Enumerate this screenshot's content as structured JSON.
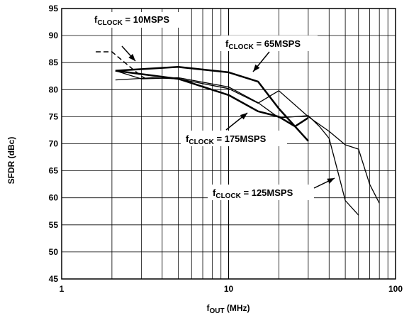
{
  "chart_data": {
    "type": "line",
    "title": "",
    "xlabel": {
      "main": "f",
      "sub": "OUT",
      "rest": " (MHz)"
    },
    "ylabel": "SFDR (dBc)",
    "x_scale": "log",
    "xlim": [
      1,
      100
    ],
    "ylim": [
      45,
      95
    ],
    "grid": true,
    "legend": "none",
    "x_ticks": [
      1,
      10,
      100
    ],
    "x_tick_labels": [
      "1",
      "10",
      "100"
    ],
    "y_ticks": [
      45,
      50,
      55,
      60,
      65,
      70,
      75,
      80,
      85,
      90,
      95
    ],
    "y_tick_labels": [
      "45",
      "50",
      "55",
      "60",
      "65",
      "70",
      "75",
      "80",
      "85",
      "90",
      "95"
    ],
    "series": [
      {
        "label_main": "f",
        "label_sub": "CLOCK",
        "label_rest": " = 10MSPS",
        "style": "dashed",
        "width": 1.5,
        "x": [
          1.6,
          2.0,
          2.5,
          3.0,
          3.3
        ],
        "y": [
          87,
          87,
          84.5,
          82.5,
          81.8
        ]
      },
      {
        "label_main": "f",
        "label_sub": "CLOCK",
        "label_rest": " = 65MSPS",
        "style": "solid",
        "width": 2.5,
        "x": [
          2.1,
          5.0,
          10,
          15,
          20,
          30
        ],
        "y": [
          83.5,
          84.2,
          83.2,
          81.5,
          76.5,
          70.5
        ]
      },
      {
        "label_main": "f",
        "label_sub": "CLOCK",
        "label_rest": " = 175MSPS",
        "style": "solid",
        "width": 2.5,
        "x": [
          2.1,
          5.0,
          10,
          15,
          20,
          25,
          30
        ],
        "y": [
          83.5,
          82.0,
          79.0,
          76.0,
          75.0,
          73.2,
          74.8
        ]
      },
      {
        "label_main": "f",
        "label_sub": "CLOCK",
        "label_rest": " = 125MSPS",
        "style": "solid",
        "width": 1.3,
        "x": [
          2.1,
          3.5,
          5,
          10,
          15,
          20,
          30,
          40,
          50,
          60,
          70,
          80
        ],
        "y": [
          81.8,
          82.2,
          82.0,
          80.2,
          77.5,
          79.8,
          75.0,
          72.3,
          69.8,
          69.0,
          62.5,
          59.0
        ]
      },
      {
        "label_main": "",
        "label_sub": "",
        "label_rest": "",
        "style": "solid",
        "width": 1.3,
        "x": [
          2.1,
          3.0,
          5.0,
          10,
          15,
          20,
          25,
          30,
          35,
          40,
          45,
          50,
          60
        ],
        "y": [
          83.5,
          82.0,
          82.2,
          80.5,
          77.6,
          74.8,
          75.0,
          75.2,
          73.2,
          71.0,
          65.0,
          59.5,
          56.8
        ]
      }
    ]
  }
}
